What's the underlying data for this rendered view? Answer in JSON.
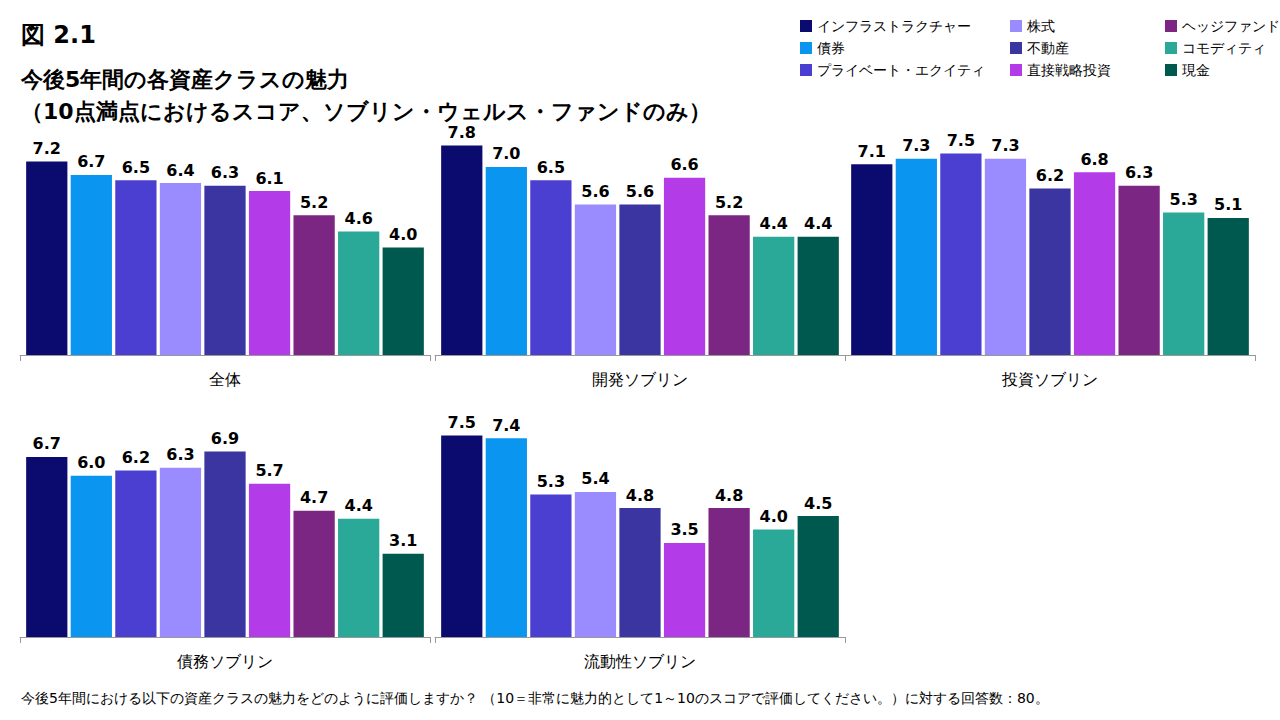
{
  "title": "図 2.1",
  "subtitle": [
    "今後5年間の各資産クラスの魅力",
    "（10点満点におけるスコア、ソブリン・ウェルス・ファンドのみ）"
  ],
  "footnote": "今後5年間における以下の資産クラスの魅力をどのように評価しますか？ （10＝非常に魅力的として1～10のスコアで評価してください。）に対する回答数：80。",
  "chart_data": [
    {
      "type": "bar",
      "categories": [
        "全体"
      ],
      "ylim": [
        0,
        8
      ],
      "tick_labels": false,
      "grid": false,
      "data_labels": true,
      "legend": "top right",
      "series": [
        {
          "name": "インフラストラクチャー",
          "color": "#0b0b6f",
          "values": [
            7.2
          ]
        },
        {
          "name": "債券",
          "color": "#0a96f0",
          "values": [
            6.7
          ]
        },
        {
          "name": "プライベート・エクイティ",
          "color": "#4b3fd2",
          "values": [
            6.5
          ]
        },
        {
          "name": "株式",
          "color": "#9a8cff",
          "values": [
            6.4
          ]
        },
        {
          "name": "不動産",
          "color": "#3a35a0",
          "values": [
            6.3
          ]
        },
        {
          "name": "直接戦略投資",
          "color": "#b43ce8",
          "values": [
            6.1
          ]
        },
        {
          "name": "ヘッジファンド",
          "color": "#7b2682",
          "values": [
            5.2
          ]
        },
        {
          "name": "コモディティ",
          "color": "#2aa898",
          "values": [
            4.6
          ]
        },
        {
          "name": "現金",
          "color": "#00594f",
          "values": [
            4.0
          ],
          "value_labels": [
            "4.0"
          ]
        }
      ]
    },
    {
      "type": "bar",
      "categories": [
        "開発ソブリン"
      ],
      "ylim": [
        0,
        8
      ],
      "tick_labels": false,
      "grid": false,
      "data_labels": true,
      "series": [
        {
          "name": "インフラストラクチャー",
          "color": "#0b0b6f",
          "values": [
            7.8
          ]
        },
        {
          "name": "債券",
          "color": "#0a96f0",
          "values": [
            7.0
          ],
          "value_labels": [
            "7.0"
          ]
        },
        {
          "name": "プライベート・エクイティ",
          "color": "#4b3fd2",
          "values": [
            6.5
          ]
        },
        {
          "name": "株式",
          "color": "#9a8cff",
          "values": [
            5.6
          ]
        },
        {
          "name": "不動産",
          "color": "#3a35a0",
          "values": [
            5.6
          ]
        },
        {
          "name": "直接戦略投資",
          "color": "#b43ce8",
          "values": [
            6.6
          ]
        },
        {
          "name": "ヘッジファンド",
          "color": "#7b2682",
          "values": [
            5.2
          ]
        },
        {
          "name": "コモディティ",
          "color": "#2aa898",
          "values": [
            4.4
          ]
        },
        {
          "name": "現金",
          "color": "#00594f",
          "values": [
            4.4
          ]
        }
      ]
    },
    {
      "type": "bar",
      "categories": [
        "投資ソブリン"
      ],
      "ylim": [
        0,
        8
      ],
      "tick_labels": false,
      "grid": false,
      "data_labels": true,
      "series": [
        {
          "name": "インフラストラクチャー",
          "color": "#0b0b6f",
          "values": [
            7.1
          ]
        },
        {
          "name": "債券",
          "color": "#0a96f0",
          "values": [
            7.3
          ]
        },
        {
          "name": "プライベート・エクイティ",
          "color": "#4b3fd2",
          "values": [
            7.5
          ]
        },
        {
          "name": "株式",
          "color": "#9a8cff",
          "values": [
            7.3
          ]
        },
        {
          "name": "不動産",
          "color": "#3a35a0",
          "values": [
            6.2
          ]
        },
        {
          "name": "直接戦略投資",
          "color": "#b43ce8",
          "values": [
            6.8
          ]
        },
        {
          "name": "ヘッジファンド",
          "color": "#7b2682",
          "values": [
            6.3
          ]
        },
        {
          "name": "コモディティ",
          "color": "#2aa898",
          "values": [
            5.3
          ]
        },
        {
          "name": "現金",
          "color": "#00594f",
          "values": [
            5.1
          ]
        }
      ]
    },
    {
      "type": "bar",
      "categories": [
        "債務ソブリン"
      ],
      "ylim": [
        0,
        8
      ],
      "tick_labels": false,
      "grid": false,
      "data_labels": true,
      "series": [
        {
          "name": "インフラストラクチャー",
          "color": "#0b0b6f",
          "values": [
            6.7
          ]
        },
        {
          "name": "債券",
          "color": "#0a96f0",
          "values": [
            6.0
          ],
          "value_labels": [
            "6.0"
          ]
        },
        {
          "name": "プライベート・エクイティ",
          "color": "#4b3fd2",
          "values": [
            6.2
          ]
        },
        {
          "name": "株式",
          "color": "#9a8cff",
          "values": [
            6.3
          ]
        },
        {
          "name": "不動産",
          "color": "#3a35a0",
          "values": [
            6.9
          ]
        },
        {
          "name": "直接戦略投資",
          "color": "#b43ce8",
          "values": [
            5.7
          ]
        },
        {
          "name": "ヘッジファンド",
          "color": "#7b2682",
          "values": [
            4.7
          ]
        },
        {
          "name": "コモディティ",
          "color": "#2aa898",
          "values": [
            4.4
          ]
        },
        {
          "name": "現金",
          "color": "#00594f",
          "values": [
            3.1
          ]
        }
      ]
    },
    {
      "type": "bar",
      "categories": [
        "流動性ソブリン"
      ],
      "ylim": [
        0,
        8
      ],
      "tick_labels": false,
      "grid": false,
      "data_labels": true,
      "series": [
        {
          "name": "インフラストラクチャー",
          "color": "#0b0b6f",
          "values": [
            7.5
          ]
        },
        {
          "name": "債券",
          "color": "#0a96f0",
          "values": [
            7.4
          ]
        },
        {
          "name": "プライベート・エクイティ",
          "color": "#4b3fd2",
          "values": [
            5.3
          ]
        },
        {
          "name": "株式",
          "color": "#9a8cff",
          "values": [
            5.4
          ]
        },
        {
          "name": "不動産",
          "color": "#3a35a0",
          "values": [
            4.8
          ]
        },
        {
          "name": "直接戦略投資",
          "color": "#b43ce8",
          "values": [
            3.5
          ]
        },
        {
          "name": "ヘッジファンド",
          "color": "#7b2682",
          "values": [
            4.8
          ]
        },
        {
          "name": "コモディティ",
          "color": "#2aa898",
          "values": [
            4.0
          ],
          "value_labels": [
            "4.0"
          ]
        },
        {
          "name": "現金",
          "color": "#00594f",
          "values": [
            4.5
          ]
        }
      ]
    }
  ]
}
